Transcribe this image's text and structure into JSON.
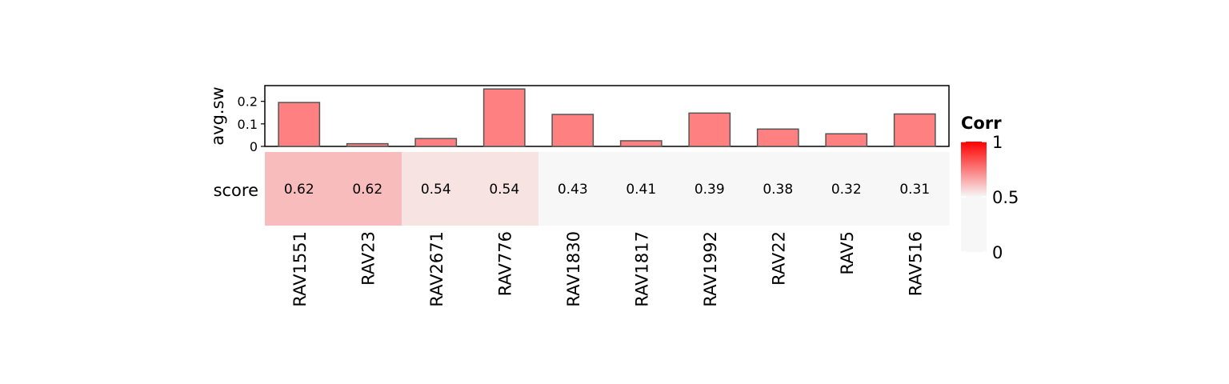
{
  "chart_data": {
    "type": "heatmap",
    "categories": [
      "RAV1551",
      "RAV23",
      "RAV2671",
      "RAV776",
      "RAV1830",
      "RAV1817",
      "RAV1992",
      "RAV22",
      "RAV5",
      "RAV516"
    ],
    "top_annotation": {
      "type": "bar",
      "ylabel": "avg.sw",
      "ylim": [
        0,
        0.27
      ],
      "yticks": [
        0,
        0.1,
        0.2
      ],
      "ytick_labels": [
        "0",
        "0.1",
        "0.2"
      ],
      "values": [
        0.195,
        0.012,
        0.035,
        0.255,
        0.142,
        0.025,
        0.148,
        0.077,
        0.056,
        0.144
      ],
      "fill_color": "#ff8080",
      "border_color": "#555555"
    },
    "rows": [
      {
        "label": "score",
        "values": [
          0.62,
          0.62,
          0.54,
          0.54,
          0.43,
          0.41,
          0.39,
          0.38,
          0.32,
          0.31
        ],
        "value_labels": [
          "0.62",
          "0.62",
          "0.54",
          "0.54",
          "0.43",
          "0.41",
          "0.39",
          "0.38",
          "0.32",
          "0.31"
        ]
      }
    ],
    "legend": {
      "title": "Corr",
      "placement": "right",
      "range": [
        0,
        1
      ],
      "ticks": [
        0,
        0.5,
        1
      ],
      "tick_labels": [
        "0",
        "0.5",
        "1"
      ],
      "colors": {
        "low": "#f7f7f7",
        "high": "#ff0000"
      }
    }
  }
}
